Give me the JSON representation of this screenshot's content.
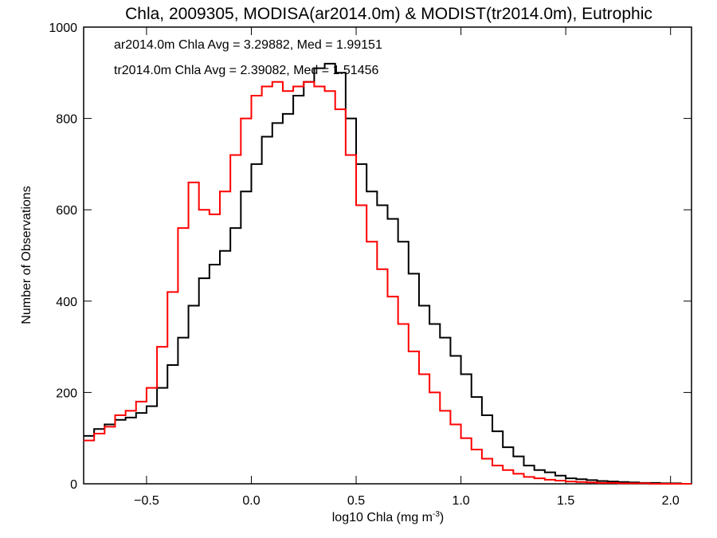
{
  "chart_data": {
    "type": "line",
    "title": "Chla, 2009305, MODISA(ar2014.0m) & MODIST(tr2014.0m), Eutrophic",
    "xlabel_prefix": "log10 Chla (mg m",
    "xlabel_sup": "-3",
    "xlabel_suffix": ")",
    "ylabel": "Number of Observations",
    "xlim": [
      -0.8,
      2.1
    ],
    "ylim": [
      0,
      1000
    ],
    "x_ticks": [
      -0.5,
      0.0,
      0.5,
      1.0,
      1.5,
      2.0
    ],
    "x_tick_labels": [
      "−0.5",
      "0.0",
      "0.5",
      "1.0",
      "1.5",
      "2.0"
    ],
    "y_ticks": [
      0,
      200,
      400,
      600,
      800,
      1000
    ],
    "y_tick_labels": [
      "0",
      "200",
      "400",
      "600",
      "800",
      "1000"
    ],
    "grid": false,
    "legend_position": "top-left (annotations)",
    "annotations": [
      {
        "text": "ar2014.0m Chla Avg = 3.29882, Med = 1.99151",
        "color": "#000000"
      },
      {
        "text": "tr2014.0m Chla Avg = 2.39082, Med = 1.51456",
        "color": "#ff0000"
      }
    ],
    "series": [
      {
        "color": "#000000",
        "step": true,
        "x": [
          -0.8,
          -0.75,
          -0.7,
          -0.65,
          -0.6,
          -0.55,
          -0.5,
          -0.45,
          -0.4,
          -0.35,
          -0.3,
          -0.25,
          -0.2,
          -0.15,
          -0.1,
          -0.05,
          0.0,
          0.05,
          0.1,
          0.15,
          0.2,
          0.25,
          0.3,
          0.35,
          0.4,
          0.45,
          0.5,
          0.55,
          0.6,
          0.65,
          0.7,
          0.75,
          0.8,
          0.85,
          0.9,
          0.95,
          1.0,
          1.05,
          1.1,
          1.15,
          1.2,
          1.25,
          1.3,
          1.35,
          1.4,
          1.45,
          1.5,
          1.55,
          1.6,
          1.65,
          1.7,
          1.75,
          1.8,
          1.85,
          1.9,
          1.95,
          2.0,
          2.05,
          2.1
        ],
        "y": [
          105,
          120,
          130,
          140,
          145,
          155,
          170,
          210,
          260,
          320,
          390,
          450,
          480,
          510,
          560,
          640,
          700,
          760,
          790,
          810,
          850,
          880,
          910,
          920,
          900,
          800,
          700,
          640,
          610,
          580,
          530,
          460,
          390,
          350,
          320,
          280,
          240,
          190,
          150,
          115,
          80,
          60,
          40,
          30,
          25,
          18,
          12,
          10,
          8,
          6,
          5,
          4,
          3,
          2,
          2,
          1,
          1,
          0,
          0
        ]
      },
      {
        "color": "#ff0000",
        "step": true,
        "x": [
          -0.8,
          -0.75,
          -0.7,
          -0.65,
          -0.6,
          -0.55,
          -0.5,
          -0.45,
          -0.4,
          -0.35,
          -0.3,
          -0.25,
          -0.2,
          -0.15,
          -0.1,
          -0.05,
          0.0,
          0.05,
          0.1,
          0.15,
          0.2,
          0.25,
          0.3,
          0.35,
          0.4,
          0.45,
          0.5,
          0.55,
          0.6,
          0.65,
          0.7,
          0.75,
          0.8,
          0.85,
          0.9,
          0.95,
          1.0,
          1.05,
          1.1,
          1.15,
          1.2,
          1.25,
          1.3,
          1.35,
          1.4,
          1.45,
          1.5,
          1.55,
          1.6,
          1.65,
          1.7,
          1.75,
          1.8,
          1.85,
          1.9,
          1.95,
          2.0,
          2.05,
          2.1
        ],
        "y": [
          95,
          110,
          125,
          150,
          160,
          180,
          210,
          300,
          420,
          560,
          660,
          600,
          590,
          640,
          720,
          800,
          850,
          870,
          880,
          860,
          870,
          880,
          870,
          860,
          820,
          720,
          610,
          530,
          470,
          410,
          350,
          290,
          240,
          200,
          160,
          130,
          100,
          75,
          55,
          40,
          30,
          22,
          15,
          12,
          9,
          7,
          5,
          4,
          3,
          2,
          2,
          1,
          1,
          1,
          0,
          0,
          0,
          0,
          0
        ]
      }
    ]
  }
}
